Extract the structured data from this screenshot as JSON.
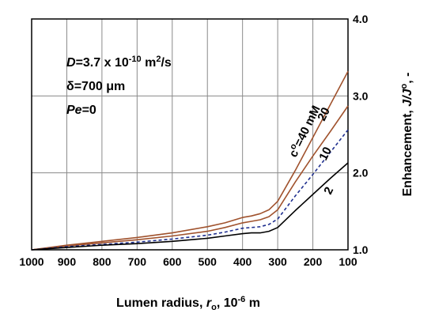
{
  "chart_data": {
    "type": "line",
    "xlabel": {
      "main": "Lumen radius, ",
      "var": "r",
      "sub": "o",
      "rest": ", 10",
      "sup": "-6",
      "unit": " m"
    },
    "ylabel": {
      "main": "Enhancement, ",
      "var": "J/J",
      "sup": "o",
      "rest": ", -"
    },
    "xlim": [
      1000,
      100
    ],
    "ylim": [
      1.0,
      4.0
    ],
    "x_ticks": [
      "1000",
      "900",
      "800",
      "700",
      "600",
      "500",
      "400",
      "300",
      "200",
      "100"
    ],
    "y_ticks": [
      "1.0",
      "2.0",
      "3.0",
      "4.0"
    ],
    "grid": true,
    "annotations": {
      "diffusivity": {
        "var": "D",
        "value": "=3.7 x 10",
        "exp": "-10",
        "unit": " m",
        "unit_exp": "2",
        "unit_rest": "/s"
      },
      "thickness": {
        "text": "δ=700 μm"
      },
      "peclet": {
        "var": "Pe",
        "value": "=0"
      }
    },
    "series": [
      {
        "name": "40",
        "label": {
          "prefix": "c",
          "sup": "o",
          "text": "=40 mM"
        },
        "color": "#a0522d",
        "style": "solid",
        "x": [
          1000,
          900,
          800,
          700,
          600,
          500,
          450,
          400,
          375,
          350,
          325,
          300,
          250,
          200,
          150,
          100
        ],
        "y": [
          1.0,
          1.06,
          1.11,
          1.16,
          1.22,
          1.3,
          1.35,
          1.42,
          1.44,
          1.47,
          1.52,
          1.63,
          2.03,
          2.46,
          2.89,
          3.32
        ]
      },
      {
        "name": "20",
        "label": {
          "text": "20"
        },
        "color": "#a0522d",
        "style": "solid",
        "x": [
          1000,
          900,
          800,
          700,
          600,
          500,
          450,
          400,
          375,
          350,
          325,
          300,
          250,
          200,
          150,
          100
        ],
        "y": [
          1.0,
          1.05,
          1.09,
          1.13,
          1.18,
          1.24,
          1.29,
          1.35,
          1.37,
          1.39,
          1.43,
          1.52,
          1.88,
          2.22,
          2.54,
          2.87
        ]
      },
      {
        "name": "10",
        "label": {
          "text": "10"
        },
        "color": "#1f2f8f",
        "style": "dashed",
        "x": [
          1000,
          900,
          800,
          700,
          600,
          500,
          450,
          400,
          375,
          350,
          325,
          300,
          250,
          200,
          150,
          100
        ],
        "y": [
          1.0,
          1.04,
          1.07,
          1.1,
          1.14,
          1.19,
          1.23,
          1.28,
          1.29,
          1.3,
          1.33,
          1.4,
          1.7,
          1.98,
          2.27,
          2.56
        ]
      },
      {
        "name": "2",
        "label": {
          "text": "2"
        },
        "color": "#000000",
        "style": "solid",
        "x": [
          1000,
          900,
          800,
          700,
          600,
          500,
          450,
          400,
          375,
          350,
          325,
          300,
          250,
          200,
          150,
          100
        ],
        "y": [
          1.0,
          1.03,
          1.06,
          1.08,
          1.11,
          1.15,
          1.18,
          1.21,
          1.22,
          1.22,
          1.24,
          1.29,
          1.51,
          1.72,
          1.93,
          2.13
        ]
      }
    ]
  }
}
